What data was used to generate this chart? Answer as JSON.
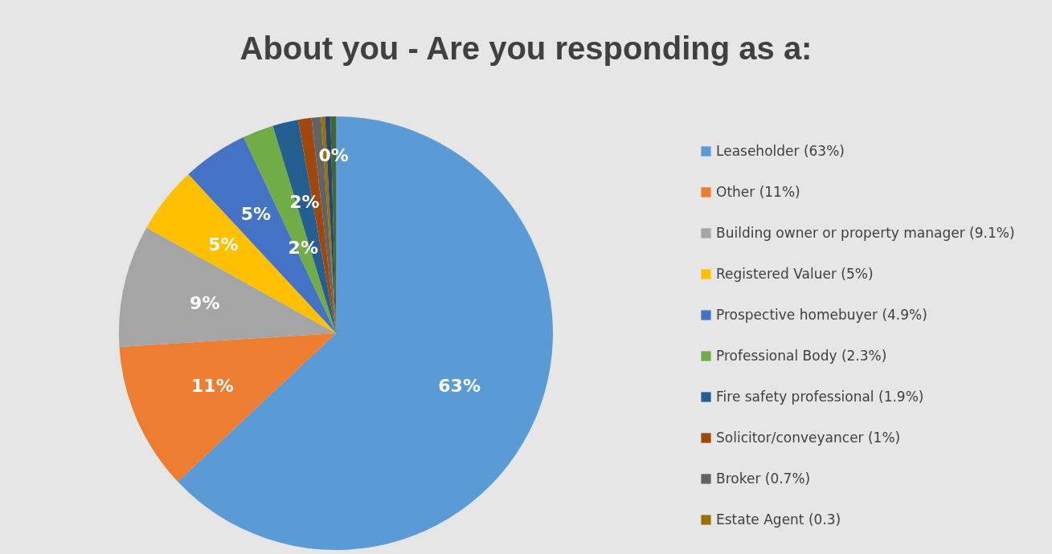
{
  "chart_data": {
    "type": "pie",
    "title": "About you - Are you responding as a:",
    "categories": [
      "Leaseholder (63%)",
      "Other (11%)",
      "Building owner or property manager (9.1%)",
      "Registered Valuer (5%)",
      "Prospective homebuyer (4.9%)",
      "Professional Body (2.3%)",
      "Fire safety professional (1.9%)",
      "Solicitor/conveyancer (1%)",
      "Broker (0.7%)",
      "Estate Agent (0.3)",
      null,
      null
    ],
    "values": [
      63,
      11,
      9.1,
      5,
      4.9,
      2.3,
      1.9,
      1,
      0.7,
      0.3,
      0.4,
      0.4
    ],
    "colors": [
      "#5b9bd5",
      "#ed7d31",
      "#a5a5a5",
      "#ffc000",
      "#4472c4",
      "#70ad47",
      "#255e91",
      "#9e480e",
      "#636363",
      "#997300",
      "#264478",
      "#43682b"
    ],
    "value_labels": [
      "63%",
      "11%",
      "9%",
      "5%",
      "5%",
      "2%",
      "2%",
      null,
      null,
      null,
      null,
      "0%"
    ],
    "legend": "right"
  }
}
